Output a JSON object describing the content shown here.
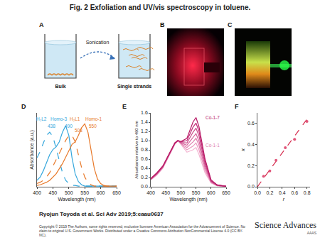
{
  "title": "Fig. 2 Exfoliation and UV/vis spectroscopy in toluene.",
  "panels": {
    "A": {
      "letter": "A",
      "sonication": "Sonication",
      "bulk": "Bulk",
      "single": "Single strands"
    },
    "B": {
      "letter": "B"
    },
    "C": {
      "letter": "C"
    }
  },
  "chart_data": [
    {
      "panel": "D",
      "type": "line",
      "x_label": "Wavelength (nm)",
      "y_label": "Absorbance (a.u.)",
      "x": [
        400,
        410,
        420,
        430,
        440,
        450,
        460,
        470,
        480,
        490,
        500,
        510,
        520,
        530,
        540,
        550,
        560,
        570,
        580,
        590,
        600,
        610,
        620,
        630,
        640,
        650
      ],
      "xlim": [
        400,
        650
      ],
      "xticks": [
        400,
        450,
        500,
        550,
        600,
        650
      ],
      "ylim": [
        0,
        1.15
      ],
      "tick_labels": "x",
      "grid": false,
      "series": [
        {
          "color": "#35a7dc",
          "line_style": "dash",
          "values": [
            0.45,
            0.55,
            0.68,
            0.8,
            0.85,
            0.78,
            0.6,
            0.4,
            0.22,
            0.1,
            0.05,
            0.02,
            0.02,
            0.01,
            0.01,
            0.01,
            0.01,
            0.01,
            0.01,
            0.01,
            0.01,
            0.01,
            0.01,
            0.01,
            0.01,
            0.01
          ]
        },
        {
          "color": "#35a7dc",
          "line_style": "solid",
          "values": [
            0.1,
            0.15,
            0.25,
            0.38,
            0.5,
            0.58,
            0.62,
            0.7,
            0.85,
            0.95,
            0.8,
            0.45,
            0.2,
            0.08,
            0.03,
            0.01,
            0.01,
            0.01,
            0.01,
            0.01,
            0.01,
            0.01,
            0.01,
            0.01,
            0.01,
            0.01
          ]
        },
        {
          "color": "#e8792a",
          "line_style": "dash",
          "values": [
            0.05,
            0.07,
            0.1,
            0.15,
            0.22,
            0.32,
            0.42,
            0.52,
            0.62,
            0.72,
            0.8,
            0.8,
            0.7,
            0.5,
            0.3,
            0.15,
            0.07,
            0.03,
            0.01,
            0.01,
            0.01,
            0.01,
            0.01,
            0.01,
            0.01,
            0.01
          ]
        },
        {
          "color": "#e8792a",
          "line_style": "solid",
          "values": [
            0.02,
            0.03,
            0.05,
            0.07,
            0.1,
            0.15,
            0.2,
            0.28,
            0.36,
            0.46,
            0.56,
            0.66,
            0.7,
            0.8,
            0.92,
            0.98,
            0.85,
            0.55,
            0.28,
            0.12,
            0.05,
            0.02,
            0.01,
            0.01,
            0.01,
            0.01
          ]
        }
      ],
      "annotations": [
        {
          "text": "H₂L2",
          "x": 415,
          "y": 1.06,
          "color": "#35a7dc"
        },
        {
          "text": "438",
          "x": 445,
          "y": 0.94,
          "color": "#35a7dc"
        },
        {
          "text": "Homo-3",
          "x": 470,
          "y": 1.06,
          "color": "#35a7dc"
        },
        {
          "text": "490",
          "x": 500,
          "y": 0.94,
          "color": "#35a7dc"
        },
        {
          "text": "H₂L1",
          "x": 520,
          "y": 1.06,
          "color": "#e8792a"
        },
        {
          "text": "508",
          "x": 530,
          "y": 0.88,
          "color": "#e8792a"
        },
        {
          "text": "Homo-1",
          "x": 578,
          "y": 1.06,
          "color": "#e8792a"
        },
        {
          "text": "550",
          "x": 575,
          "y": 0.94,
          "color": "#e8792a"
        }
      ]
    },
    {
      "panel": "E",
      "type": "line",
      "x_label": "Wavelength (nm)",
      "y_label": "Absorbance relative to 490 nm",
      "x": [
        400,
        420,
        440,
        460,
        480,
        490,
        500,
        520,
        540,
        550,
        560,
        580,
        600,
        620,
        650
      ],
      "xlim": [
        400,
        650
      ],
      "xticks": [
        400,
        450,
        500,
        550,
        600,
        650
      ],
      "ylim": [
        0,
        1.6
      ],
      "yticks": [
        {
          "value": 0,
          "label": "0.0"
        },
        {
          "value": 0.2,
          "label": "0.2"
        },
        {
          "value": 0.4,
          "label": "0.4"
        },
        {
          "value": 0.6,
          "label": "0.6"
        },
        {
          "value": 0.8,
          "label": "0.8"
        },
        {
          "value": 1,
          "label": "1.0"
        },
        {
          "value": 1.2,
          "label": "1.2"
        },
        {
          "value": 1.4,
          "label": "1.4"
        },
        {
          "value": 1.6,
          "label": "1.6"
        }
      ],
      "grid": false,
      "series": [
        {
          "color": "#f4b6d2",
          "line_style": "solid",
          "values": [
            0.15,
            0.25,
            0.4,
            0.65,
            0.92,
            1.0,
            0.92,
            0.75,
            0.8,
            0.85,
            0.7,
            0.3,
            0.08,
            0.02,
            0.01
          ]
        },
        {
          "color": "#eb9ac0",
          "line_style": "solid",
          "values": [
            0.15,
            0.26,
            0.41,
            0.66,
            0.93,
            1.0,
            0.93,
            0.8,
            0.88,
            0.95,
            0.8,
            0.35,
            0.09,
            0.02,
            0.01
          ]
        },
        {
          "color": "#e07fae",
          "line_style": "solid",
          "values": [
            0.16,
            0.27,
            0.42,
            0.67,
            0.93,
            1.0,
            0.94,
            0.85,
            0.97,
            1.05,
            0.9,
            0.4,
            0.1,
            0.03,
            0.01
          ]
        },
        {
          "color": "#d6649c",
          "line_style": "solid",
          "values": [
            0.16,
            0.28,
            0.43,
            0.68,
            0.94,
            1.0,
            0.95,
            0.9,
            1.07,
            1.15,
            0.99,
            0.45,
            0.11,
            0.03,
            0.01
          ]
        },
        {
          "color": "#cc4a8a",
          "line_style": "solid",
          "values": [
            0.17,
            0.28,
            0.43,
            0.69,
            0.94,
            1.0,
            0.96,
            0.95,
            1.18,
            1.27,
            1.1,
            0.5,
            0.12,
            0.03,
            0.01
          ]
        },
        {
          "color": "#c23078",
          "line_style": "solid",
          "values": [
            0.17,
            0.29,
            0.44,
            0.69,
            0.95,
            1.0,
            0.97,
            1.0,
            1.29,
            1.38,
            1.2,
            0.55,
            0.13,
            0.04,
            0.01
          ]
        },
        {
          "color": "#b81a66",
          "line_style": "solid",
          "values": [
            0.18,
            0.3,
            0.45,
            0.7,
            0.95,
            1.0,
            0.98,
            1.05,
            1.4,
            1.5,
            1.3,
            0.6,
            0.15,
            0.04,
            0.01
          ]
        }
      ],
      "annotations": [
        {
          "text": "Co-1-7",
          "x": 605,
          "y": 1.5,
          "color": "#b81a66"
        },
        {
          "text": "Co-1-1",
          "x": 605,
          "y": 0.9,
          "color": "#e07fae"
        }
      ]
    },
    {
      "panel": "F",
      "type": "scatter",
      "x_label": "r",
      "y_label": "x",
      "xlim": [
        0,
        0.85
      ],
      "xticks": [
        {
          "value": 0,
          "label": "0.0"
        },
        {
          "value": 0.2,
          "label": "0.2"
        },
        {
          "value": 0.4,
          "label": "0.4"
        },
        {
          "value": 0.6,
          "label": "0.6"
        },
        {
          "value": 0.8,
          "label": "0.8"
        }
      ],
      "ylim": [
        0,
        0.7
      ],
      "yticks": [
        {
          "value": 0,
          "label": "0.0"
        },
        {
          "value": 0.2,
          "label": "0.2"
        },
        {
          "value": 0.4,
          "label": "0.4"
        },
        {
          "value": 0.6,
          "label": "0.6"
        }
      ],
      "grid": false,
      "series": [
        {
          "type": "line",
          "line_style": "dash",
          "color": "#d62d4f",
          "x": [
            0,
            0.8
          ],
          "values": [
            0,
            0.64
          ]
        },
        {
          "type": "scatter",
          "marker": "circle",
          "color": "#e0567a",
          "x": [
            0.1,
            0.2,
            0.3,
            0.45,
            0.6,
            0.8
          ],
          "values": [
            0.1,
            0.15,
            0.25,
            0.37,
            0.45,
            0.62
          ]
        }
      ]
    }
  ],
  "footer": {
    "citation": "Ryojun Toyoda et al. Sci Adv 2019;5:eaau0637",
    "copyright": "Copyright © 2019 The Authors, some rights reserved; exclusive licensee American Association for the Advancement of Science. No claim to original U.S. Government Works. Distributed under a Creative Commons Attribution NonCommercial License 4.0 (CC BY-NC).",
    "logo": "Science Advances",
    "logo_sub": "AAAS"
  }
}
